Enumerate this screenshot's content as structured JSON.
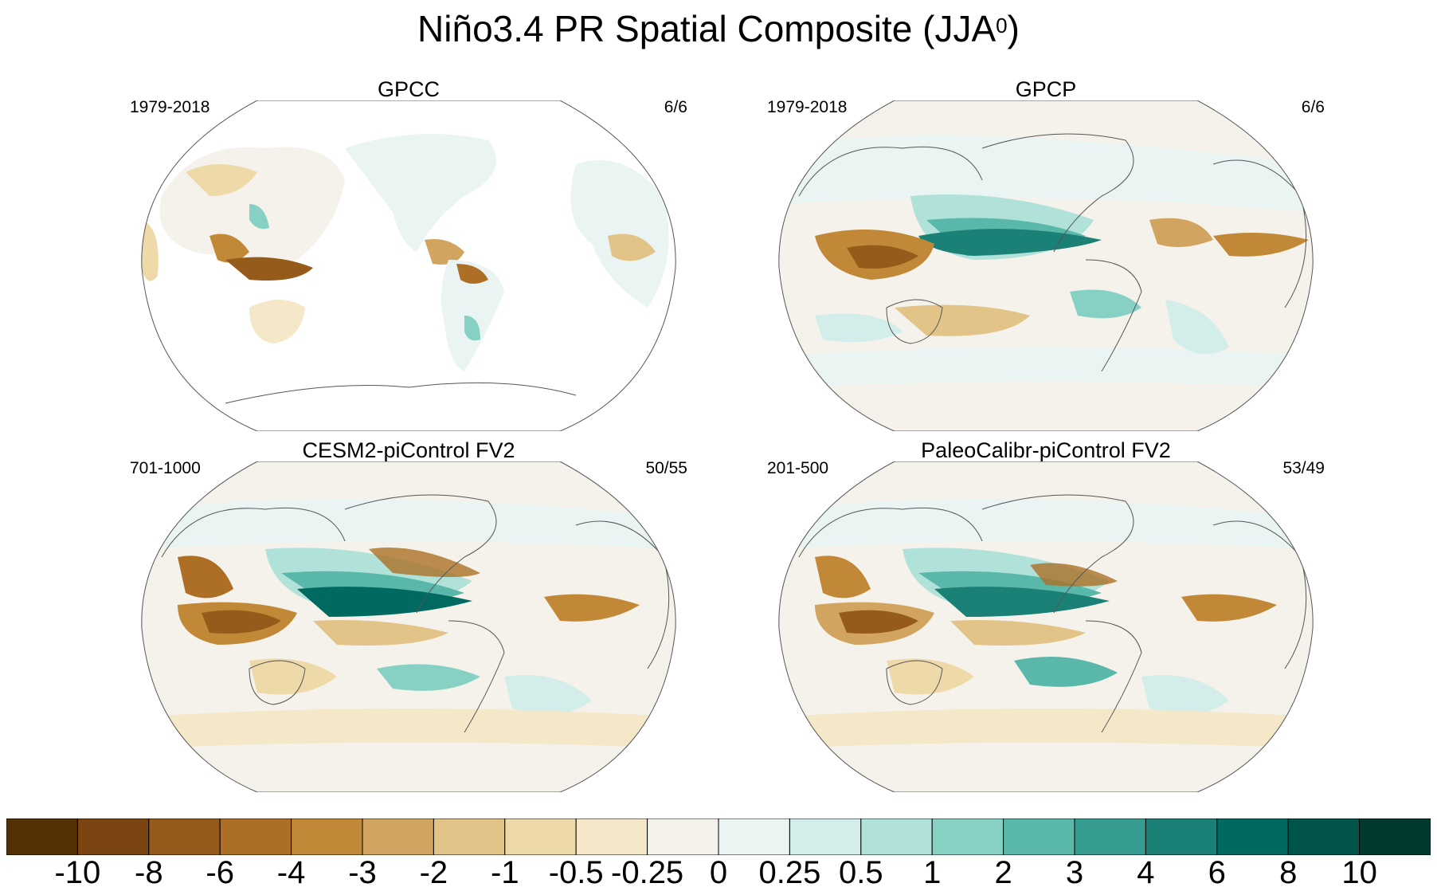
{
  "figure": {
    "title_main": "Niño3.4 PR Spatial Composite (JJA",
    "title_sup": "0",
    "title_close": ")"
  },
  "panels": [
    {
      "title": "GPCC",
      "left_label": "1979-2018",
      "right_label": "6/6",
      "style": "gpcc"
    },
    {
      "title": "GPCP",
      "left_label": "1979-2018",
      "right_label": "6/6",
      "style": "gpcp"
    },
    {
      "title": "CESM2-piControl FV2",
      "left_label": "701-1000",
      "right_label": "50/55",
      "style": "model"
    },
    {
      "title": "PaleoCalibr-piControl FV2",
      "left_label": "201-500",
      "right_label": "53/49",
      "style": "model"
    }
  ],
  "colorbar": {
    "labels": [
      "-10",
      "-8",
      "-6",
      "-4",
      "-3",
      "-2",
      "-1",
      "-0.5",
      "-0.25",
      "0",
      "0.25",
      "0.5",
      "1",
      "2",
      "3",
      "4",
      "6",
      "8",
      "10"
    ],
    "colors": [
      "#543005",
      "#7a4510",
      "#955b1a",
      "#ad6f26",
      "#c18838",
      "#d1a460",
      "#e2c488",
      "#eed9a8",
      "#f5e8c8",
      "#f5f2eb",
      "#eaf4f3",
      "#d3eeea",
      "#b1e2da",
      "#87d0c4",
      "#5ab8aa",
      "#369c90",
      "#1b8075",
      "#006a60",
      "#015449",
      "#003a2f"
    ]
  }
}
